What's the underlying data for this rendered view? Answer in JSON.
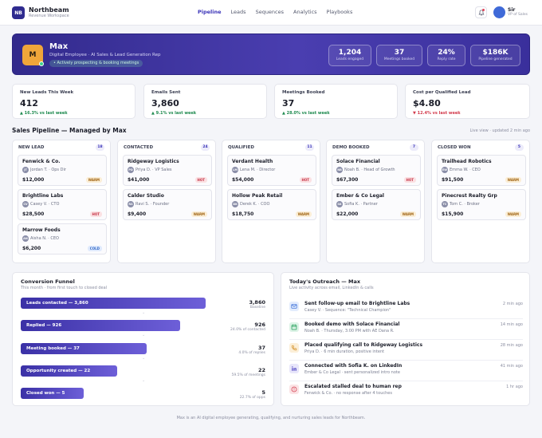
{
  "brand": {
    "logo": "NB",
    "name": "Northbeam",
    "subtitle": "Revenue Workspace"
  },
  "nav": {
    "items": [
      "Pipeline",
      "Leads",
      "Sequences",
      "Analytics",
      "Playbooks"
    ],
    "active": "Pipeline"
  },
  "user": {
    "name": "Sir",
    "role": "VP of Sales"
  },
  "hero": {
    "avatar_letter": "M",
    "name": "Max",
    "role": "Digital Employee · AI Sales & Lead Generation Rep",
    "status": "• Actively prospecting & booking meetings",
    "stats": [
      {
        "value": "1,204",
        "label": "Leads engaged"
      },
      {
        "value": "37",
        "label": "Meetings booked"
      },
      {
        "value": "24%",
        "label": "Reply rate"
      },
      {
        "value": "$186K",
        "label": "Pipeline generated"
      }
    ]
  },
  "metrics": [
    {
      "label": "New Leads This Week",
      "value": "412",
      "delta": "▲ 16.3% vs last week",
      "trend": "up"
    },
    {
      "label": "Emails Sent",
      "value": "3,860",
      "delta": "▲ 9.1% vs last week",
      "trend": "up"
    },
    {
      "label": "Meetings Booked",
      "value": "37",
      "delta": "▲ 28.0% vs last week",
      "trend": "up"
    },
    {
      "label": "Cost per Qualified Lead",
      "value": "$4.80",
      "delta": "▼ 12.4% vs last week",
      "trend": "down"
    }
  ],
  "pipeline": {
    "title": "Sales Pipeline — Managed by Max",
    "meta": "Live view · updated 2 min ago",
    "columns": [
      {
        "name": "NEW LEAD",
        "count": "18",
        "deals": [
          {
            "company": "Fenwick & Co.",
            "initials": "JT",
            "contact": "Jordan T. · Ops Dir",
            "value": "$12,000",
            "tag": "WARM",
            "tag_type": "warm"
          },
          {
            "company": "Brightline Labs",
            "initials": "CV",
            "contact": "Casey V. · CTO",
            "value": "$28,500",
            "tag": "HOT",
            "tag_type": "hot"
          },
          {
            "company": "Marrow Foods",
            "initials": "AN",
            "contact": "Aisha N. · CEO",
            "value": "$6,200",
            "tag": "COLD",
            "tag_type": "cold"
          }
        ]
      },
      {
        "name": "CONTACTED",
        "count": "24",
        "deals": [
          {
            "company": "Ridgeway Logistics",
            "initials": "PD",
            "contact": "Priya D. · VP Sales",
            "value": "$41,000",
            "tag": "HOT",
            "tag_type": "hot"
          },
          {
            "company": "Calder Studio",
            "initials": "RS",
            "contact": "Ravi S. · Founder",
            "value": "$9,400",
            "tag": "WARM",
            "tag_type": "warm"
          }
        ]
      },
      {
        "name": "QUALIFIED",
        "count": "11",
        "deals": [
          {
            "company": "Verdant Health",
            "initials": "LM",
            "contact": "Lena M. · Director",
            "value": "$54,000",
            "tag": "HOT",
            "tag_type": "hot"
          },
          {
            "company": "Hollow Peak Retail",
            "initials": "DK",
            "contact": "Derek K. · COO",
            "value": "$18,750",
            "tag": "WARM",
            "tag_type": "warm"
          }
        ]
      },
      {
        "name": "DEMO BOOKED",
        "count": "7",
        "deals": [
          {
            "company": "Solace Financial",
            "initials": "NB",
            "contact": "Noah B. · Head of Growth",
            "value": "$67,300",
            "tag": "HOT",
            "tag_type": "hot"
          },
          {
            "company": "Ember & Co Legal",
            "initials": "SK",
            "contact": "Sofia K. · Partner",
            "value": "$22,000",
            "tag": "WARM",
            "tag_type": "warm"
          }
        ]
      },
      {
        "name": "CLOSED WON",
        "count": "5",
        "deals": [
          {
            "company": "Trailhead Robotics",
            "initials": "EW",
            "contact": "Emma W. · CEO",
            "value": "$91,500",
            "tag": "WARM",
            "tag_type": "warm"
          },
          {
            "company": "Pinecrest Realty Grp",
            "initials": "TC",
            "contact": "Tom C. · Broker",
            "value": "$15,900",
            "tag": "WARM",
            "tag_type": "warm"
          }
        ]
      }
    ]
  },
  "funnel": {
    "title": "Conversion Funnel",
    "subtitle": "This month · from first touch to closed deal",
    "stages": [
      {
        "label": "Leads contacted — 3,860",
        "value": "3,860",
        "note": "Baseline",
        "fraction": 1.0
      },
      {
        "label": "Replied — 926",
        "value": "926",
        "note": "24.0% of contacted",
        "fraction": 0.86
      },
      {
        "label": "Meeting booked — 37",
        "value": "37",
        "note": "4.0% of replies",
        "fraction": 0.68
      },
      {
        "label": "Opportunity created — 22",
        "value": "22",
        "note": "59.5% of meetings",
        "fraction": 0.52
      },
      {
        "label": "Closed won — 5",
        "value": "5",
        "note": "22.7% of opps",
        "fraction": 0.34
      }
    ]
  },
  "outreach": {
    "title": "Today's Outreach — Max",
    "subtitle": "Live activity across email, LinkedIn & calls",
    "items": [
      {
        "icon": "mail-icon",
        "color": "#3b6fd8",
        "bg": "#e3ecfd",
        "title": "Sent follow-up email to Brightline Labs",
        "detail": "Casey V. · Sequence: \"Technical Champion\"",
        "time": "2 min ago"
      },
      {
        "icon": "calendar-icon",
        "color": "#1f9d57",
        "bg": "#dcf3e6",
        "title": "Booked demo with Solace Financial",
        "detail": "Noah B. · Thursday, 3:00 PM with AE Dana R.",
        "time": "14 min ago"
      },
      {
        "icon": "phone-icon",
        "color": "#d18a1e",
        "bg": "#fcefd8",
        "title": "Placed qualifying call to Ridgeway Logistics",
        "detail": "Priya D. · 6 min duration, positive intent",
        "time": "28 min ago"
      },
      {
        "icon": "linkedin-icon",
        "color": "#5b52c7",
        "bg": "#e8e6fa",
        "title": "Connected with Sofia K. on LinkedIn",
        "detail": "Ember & Co Legal · sent personalized intro note",
        "time": "41 min ago"
      },
      {
        "icon": "alert-icon",
        "color": "#d23a4c",
        "bg": "#fbe3e5",
        "title": "Escalated stalled deal to human rep",
        "detail": "Fenwick & Co. · no response after 4 touches",
        "time": "1 hr ago"
      }
    ]
  },
  "footer": "Max is an AI digital employee generating, qualifying, and nurturing sales leads for Northbeam."
}
